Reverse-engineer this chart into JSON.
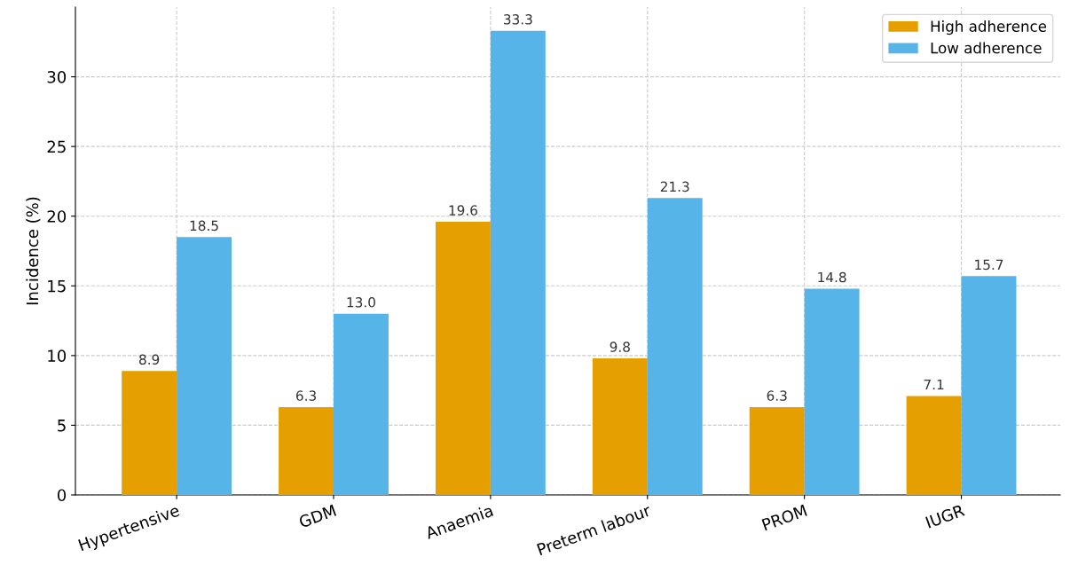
{
  "chart_data": {
    "type": "bar",
    "ylabel": "Incidence (%)",
    "categories": [
      "Hypertensive",
      "GDM",
      "Anaemia",
      "Preterm labour",
      "PROM",
      "IUGR"
    ],
    "series": [
      {
        "name": "High adherence",
        "color": "#e69f00",
        "values": [
          8.9,
          6.3,
          19.6,
          9.8,
          6.3,
          7.1
        ],
        "value_labels": [
          "8.9",
          "6.3",
          "19.6",
          "9.8",
          "6.3",
          "7.1"
        ]
      },
      {
        "name": "Low adherence",
        "color": "#56b4e9",
        "values": [
          18.5,
          13.0,
          33.3,
          21.3,
          14.8,
          15.7
        ],
        "value_labels": [
          "18.5",
          "13.0",
          "33.3",
          "21.3",
          "14.8",
          "15.7"
        ]
      }
    ],
    "ylim": [
      0,
      35
    ],
    "yticks": [
      0,
      5,
      10,
      15,
      20,
      25,
      30
    ],
    "grid": true,
    "legend": "top right"
  }
}
